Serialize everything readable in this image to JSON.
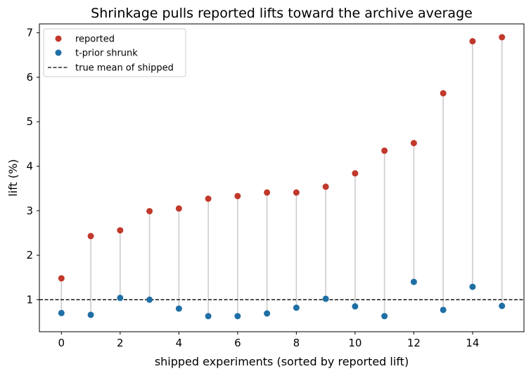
{
  "chart_data": {
    "type": "scatter",
    "title": "Shrinkage pulls reported lifts toward the archive average",
    "xlabel": "shipped experiments (sorted by reported lift)",
    "ylabel": "lift (%)",
    "xlim": [
      -0.75,
      15.75
    ],
    "ylim": [
      0.28,
      7.2
    ],
    "xticks": [
      0,
      2,
      4,
      6,
      8,
      10,
      12,
      14
    ],
    "yticks": [
      1,
      2,
      3,
      4,
      5,
      6,
      7
    ],
    "x": [
      0,
      1,
      2,
      3,
      4,
      5,
      6,
      7,
      8,
      9,
      10,
      11,
      12,
      13,
      14,
      15
    ],
    "series": [
      {
        "name": "reported",
        "color": "#c0392b",
        "values": [
          1.48,
          2.43,
          2.56,
          2.99,
          3.05,
          3.27,
          3.33,
          3.41,
          3.41,
          3.54,
          3.84,
          4.35,
          4.52,
          5.64,
          6.81,
          6.9
        ]
      },
      {
        "name": "t-prior shrunk",
        "color": "#1f6fa5",
        "values": [
          0.7,
          0.66,
          1.04,
          1.0,
          0.8,
          0.63,
          0.63,
          0.69,
          0.82,
          1.02,
          0.85,
          0.63,
          1.4,
          0.77,
          1.29,
          0.86
        ]
      }
    ],
    "reference_line": {
      "name": "true mean of shipped",
      "y": 1.0,
      "style": "dashed",
      "color": "#000000"
    },
    "connector_color": "#cccccc",
    "legend_placement": "top-left",
    "grid": false
  }
}
